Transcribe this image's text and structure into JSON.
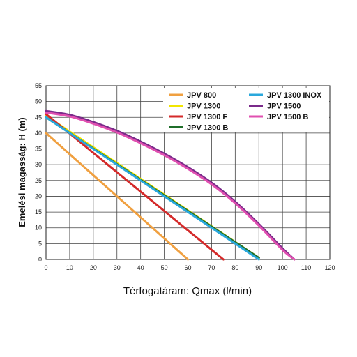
{
  "chart_data": {
    "type": "line",
    "xlabel": "Térfogatáram: Qmax (l/min)",
    "ylabel": "Emelési magasság: H (m)",
    "xlim": [
      0,
      120
    ],
    "ylim": [
      0,
      55
    ],
    "x_ticks": [
      0,
      10,
      20,
      30,
      40,
      50,
      60,
      70,
      80,
      90,
      100,
      110,
      120
    ],
    "y_ticks": [
      0,
      5,
      10,
      15,
      20,
      25,
      30,
      35,
      40,
      45,
      50,
      55
    ],
    "grid": true,
    "legend_position": "top-right",
    "series": [
      {
        "name": "JPV 800",
        "color": "#f0a040",
        "x": [
          0,
          60
        ],
        "y": [
          40,
          0
        ]
      },
      {
        "name": "JPV 1300",
        "color": "#f2e600",
        "x": [
          0,
          90
        ],
        "y": [
          45.5,
          0.5
        ]
      },
      {
        "name": "JPV 1300 F",
        "color": "#d42a2a",
        "x": [
          0,
          75
        ],
        "y": [
          46,
          0
        ]
      },
      {
        "name": "JPV 1300 B",
        "color": "#1f6e2a",
        "x": [
          0,
          90
        ],
        "y": [
          45,
          0.5
        ]
      },
      {
        "name": "JPV 1300 INOX",
        "color": "#2aa8dc",
        "x": [
          0,
          90
        ],
        "y": [
          45,
          0
        ]
      },
      {
        "name": "JPV 1500",
        "color": "#7a2a8a",
        "x": [
          0,
          10,
          20,
          30,
          40,
          50,
          60,
          70,
          80,
          90,
          100,
          105
        ],
        "y": [
          47,
          45.8,
          43.5,
          40.7,
          37.3,
          33.5,
          29.2,
          24.3,
          18.3,
          11.2,
          3.5,
          0
        ]
      },
      {
        "name": "JPV 1500 B",
        "color": "#e050b0",
        "x": [
          0,
          10,
          20,
          30,
          40,
          50,
          60,
          70,
          80,
          90,
          100,
          105
        ],
        "y": [
          46.5,
          45.3,
          43,
          40.2,
          36.8,
          33,
          28.7,
          23.8,
          17.8,
          10.7,
          3,
          0
        ]
      }
    ]
  }
}
